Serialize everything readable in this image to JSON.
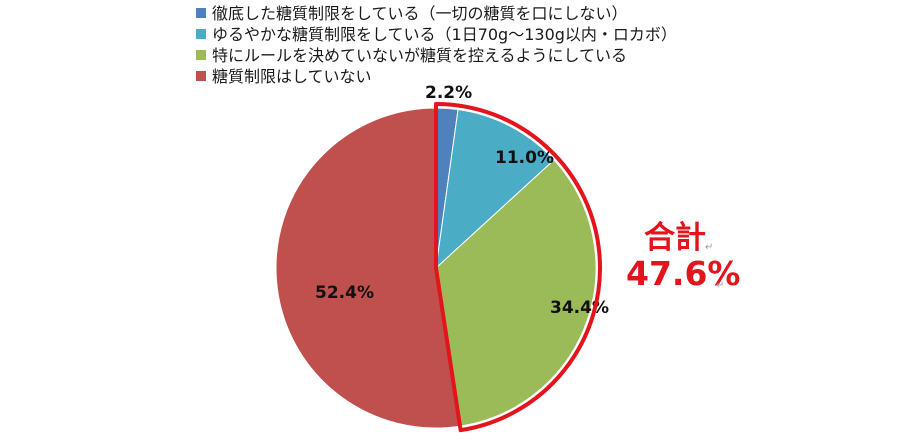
{
  "chart_data": {
    "type": "pie",
    "categories": [
      "徹底した糖質制限をしている（一切の糖質を口にしない）",
      "ゆるやかな糖質制限をしている（1日70g～130g以内・ロカボ）",
      "特にルールを決めていないが糖質を控えるようにしている",
      "糖質制限はしていない"
    ],
    "values": [
      2.2,
      11.0,
      34.4,
      52.4
    ],
    "data_labels": [
      "2.2%",
      "11.0%",
      "34.4%",
      "52.4%"
    ],
    "colors": [
      "#4f81bd",
      "#4bacc6",
      "#9bbb59",
      "#c0504d"
    ],
    "legend_position": "top-left",
    "start_angle": "12 o'clock, clockwise",
    "title": ""
  },
  "callout": {
    "label": "合計",
    "value": "47.6%",
    "color": "#e3141c",
    "return_mark": "↵"
  }
}
